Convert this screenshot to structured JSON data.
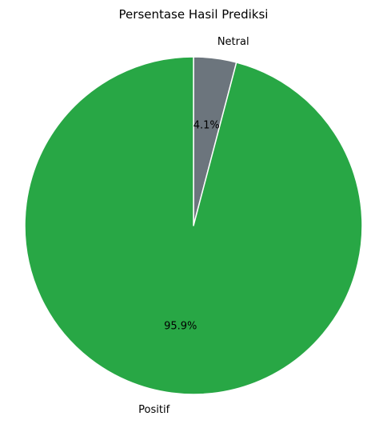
{
  "chart_data": {
    "type": "pie",
    "title": "Persentase Hasil Prediksi",
    "categories": [
      "Netral",
      "Positif"
    ],
    "values": [
      4.1,
      95.9
    ],
    "pct_labels": [
      "4.1%",
      "95.9%"
    ],
    "colors": [
      "#6c757d",
      "#28a745"
    ],
    "edge_color": "#ffffff",
    "start_angle": "90 (top), clockwise"
  }
}
